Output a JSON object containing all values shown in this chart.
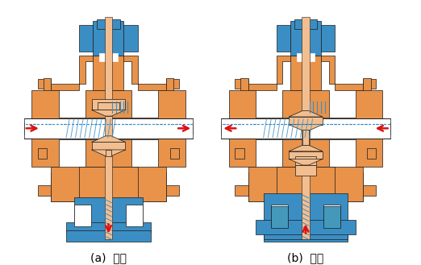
{
  "label_a": "(a)  分流",
  "label_b": "(b)  合流",
  "orange": "#E8924A",
  "orange_light": "#F2BE90",
  "blue": "#3B8EC4",
  "blue_mid": "#4499BB",
  "white": "#FFFFFF",
  "red": "#DD1111",
  "bg": "#FFFFFF",
  "black": "#1A1A1A",
  "label_fontsize": 10,
  "fig_width": 5.22,
  "fig_height": 3.29
}
